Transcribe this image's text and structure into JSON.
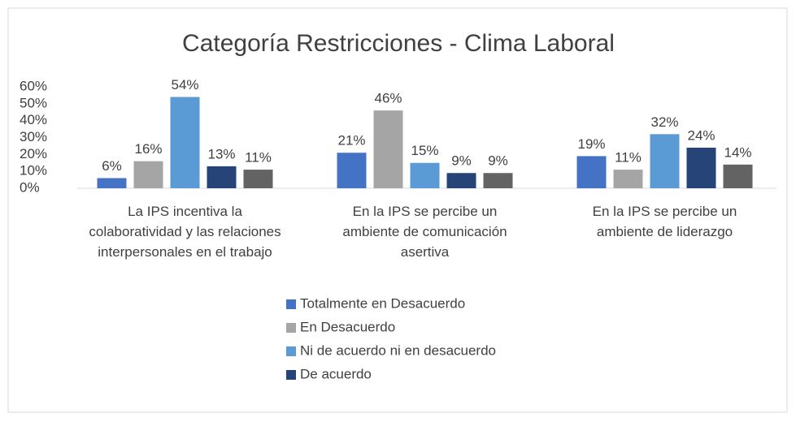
{
  "chart_data": {
    "type": "bar",
    "title": "Categoría Restricciones - Clima Laboral",
    "categories": [
      "La IPS incentiva la colaboratividad y las relaciones interpersonales en el trabajo",
      "En la IPS se percibe un ambiente de comunicación asertiva",
      "En la IPS se percibe un ambiente de liderazgo"
    ],
    "series": [
      {
        "name": "Totalmente en Desacuerdo",
        "color": "#4472c4",
        "values": [
          6,
          21,
          19
        ],
        "value_labels": [
          "6%",
          "21%",
          "19%"
        ]
      },
      {
        "name": "En Desacuerdo",
        "color": "#a5a5a5",
        "values": [
          16,
          46,
          11
        ],
        "value_labels": [
          "16%",
          "46%",
          "11%"
        ]
      },
      {
        "name": "Ni de acuerdo ni en desacuerdo",
        "color": "#5b9bd5",
        "values": [
          54,
          15,
          32
        ],
        "value_labels": [
          "54%",
          "15%",
          "32%"
        ]
      },
      {
        "name": "De acuerdo",
        "color": "#264478",
        "values": [
          13,
          9,
          24
        ],
        "value_labels": [
          "13%",
          "9%",
          "24%"
        ]
      },
      {
        "color": "#636363",
        "values": [
          11,
          9,
          14
        ],
        "value_labels": [
          "11%",
          "9%",
          "14%"
        ]
      }
    ],
    "ylim": [
      0,
      60
    ],
    "yticks": [
      {
        "value": 0,
        "label": "0%"
      },
      {
        "value": 10,
        "label": "10%"
      },
      {
        "value": 20,
        "label": "20%"
      },
      {
        "value": 30,
        "label": "30%"
      },
      {
        "value": 40,
        "label": "40%"
      },
      {
        "value": 50,
        "label": "50%"
      },
      {
        "value": 60,
        "label": "60%"
      }
    ],
    "grid": false
  }
}
